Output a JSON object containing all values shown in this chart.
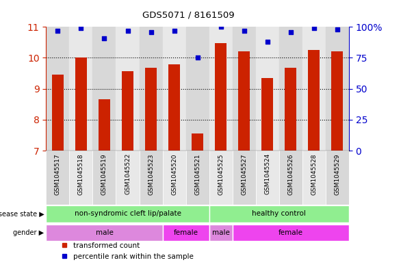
{
  "title": "GDS5071 / 8161509",
  "samples": [
    "GSM1045517",
    "GSM1045518",
    "GSM1045519",
    "GSM1045522",
    "GSM1045523",
    "GSM1045520",
    "GSM1045521",
    "GSM1045525",
    "GSM1045527",
    "GSM1045524",
    "GSM1045526",
    "GSM1045528",
    "GSM1045529"
  ],
  "bar_values": [
    9.45,
    10.0,
    8.67,
    9.56,
    9.67,
    9.78,
    7.55,
    10.48,
    10.22,
    9.35,
    9.68,
    10.25,
    10.22
  ],
  "dot_values": [
    97,
    99,
    91,
    97,
    96,
    97,
    75,
    100,
    97,
    88,
    96,
    99,
    98
  ],
  "bar_color": "#cc2200",
  "dot_color": "#0000cc",
  "bar_bottom": 7,
  "ylim_left": [
    7,
    11
  ],
  "ylim_right": [
    0,
    100
  ],
  "yticks_left": [
    7,
    8,
    9,
    10,
    11
  ],
  "yticks_right": [
    0,
    25,
    50,
    75,
    100
  ],
  "ytick_labels_right": [
    "0",
    "25",
    "50",
    "75",
    "100%"
  ],
  "disease_state_labels": [
    "non-syndromic cleft lip/palate",
    "healthy control"
  ],
  "disease_state_col_ranges": [
    [
      0,
      7
    ],
    [
      7,
      13
    ]
  ],
  "disease_state_color": "#90ee90",
  "gender_labels": [
    "male",
    "female",
    "male",
    "female"
  ],
  "gender_col_ranges": [
    [
      0,
      5
    ],
    [
      5,
      7
    ],
    [
      7,
      8
    ],
    [
      8,
      13
    ]
  ],
  "gender_color_male": "#dd88dd",
  "gender_color_female": "#ee44ee",
  "bar_width": 0.5,
  "left_axis_color": "#cc2200",
  "right_axis_color": "#0000cc",
  "col_bg_even": "#d8d8d8",
  "col_bg_odd": "#e8e8e8"
}
